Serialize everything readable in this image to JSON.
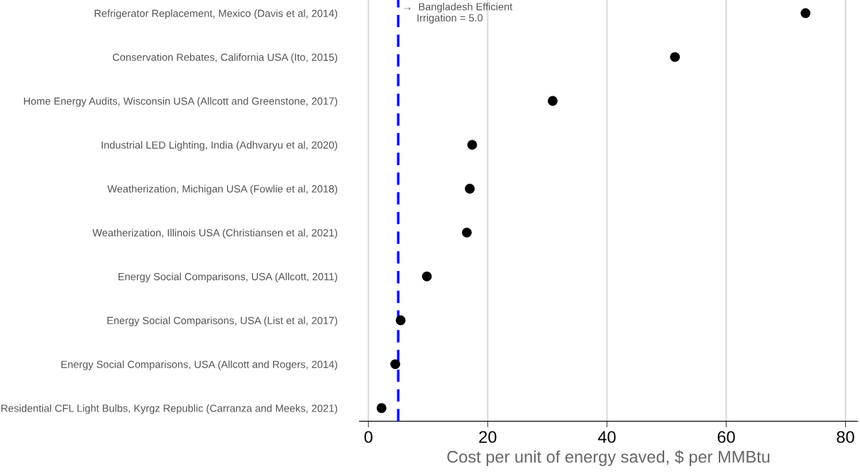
{
  "chart_data": {
    "type": "scatter",
    "orientation": "horizontal",
    "xlabel": "Cost per unit of energy saved, $ per MMBtu",
    "categories": [
      "Refrigerator Replacement, Mexico (Davis et al, 2014)",
      "Conservation Rebates, California USA (Ito, 2015)",
      "Home Energy Audits, Wisconsin USA (Allcott and Greenstone, 2017)",
      "Industrial LED Lighting, India (Adhvaryu et al, 2020)",
      "Weatherization, Michigan USA (Fowlie et al, 2018)",
      "Weatherization, Illinois USA (Christiansen et al, 2021)",
      "Energy Social Comparisons, USA (Allcott, 2011)",
      "Energy Social Comparisons, USA (List et al, 2017)",
      "Energy Social Comparisons, USA (Allcott and Rogers, 2014)",
      "Residential CFL Light Bulbs, Kyrgz Republic (Carranza and Meeks, 2021)"
    ],
    "values": [
      73.3,
      51.4,
      30.9,
      17.4,
      17.0,
      16.5,
      9.8,
      5.4,
      4.5,
      2.2
    ],
    "color": "#000000",
    "marker": "circle",
    "xlim": [
      -1.5,
      82
    ],
    "xticks": [
      0,
      20,
      40,
      60,
      80
    ],
    "grid": "x",
    "ref_lines": [
      {
        "axis": "x",
        "value": 5.0,
        "label": "→  Bangladesh Efficient\n     Irrigation = 5.0",
        "color": "#0000ff",
        "line_style": "dashed"
      }
    ]
  }
}
